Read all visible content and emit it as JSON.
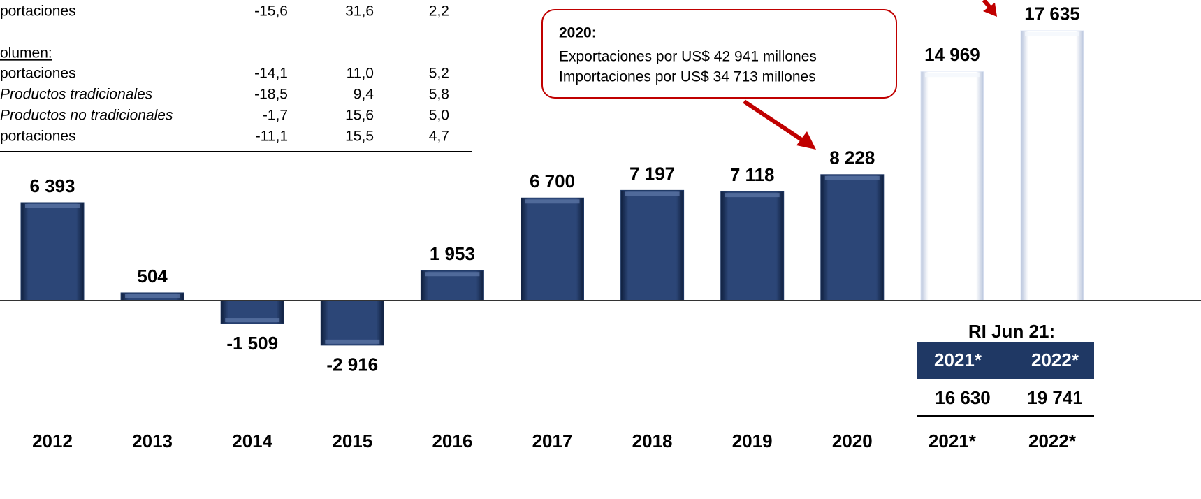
{
  "chart_data": {
    "type": "bar",
    "categories": [
      "2012",
      "2013",
      "2014",
      "2015",
      "2016",
      "2017",
      "2018",
      "2019",
      "2020",
      "2021*",
      "2022*"
    ],
    "values": [
      6393,
      504,
      -1509,
      -2916,
      1953,
      6700,
      7197,
      7118,
      8228,
      14969,
      17635
    ],
    "value_labels": [
      "6 393",
      "504",
      "-1 509",
      "-2 916",
      "1 953",
      "6 700",
      "7 197",
      "7 118",
      "8 228",
      "14 969",
      "17 635"
    ],
    "colors": [
      "#1f3864",
      "#1f3864",
      "#1f3864",
      "#1f3864",
      "#1f3864",
      "#1f3864",
      "#1f3864",
      "#1f3864",
      "#1f3864",
      "#e6ecf8",
      "#e6ecf8"
    ]
  },
  "table": {
    "rows": [
      [
        "portaciones",
        "-15,6",
        "31,6",
        "2,2"
      ],
      [
        "olumen:"
      ],
      [
        "portaciones",
        "-14,1",
        "11,0",
        "5,2"
      ],
      [
        "Productos tradicionales",
        "-18,5",
        "9,4",
        "5,8"
      ],
      [
        "Productos no tradicionales",
        "-1,7",
        "15,6",
        "5,0"
      ],
      [
        "portaciones",
        "-11,1",
        "15,5",
        "4,7"
      ]
    ]
  },
  "callout": {
    "title": "2020:",
    "lines": [
      "Exportaciones por US$ 42 941 millones",
      "Importaciones por US$ 34 713 millones"
    ]
  },
  "forecast_table": {
    "title": "RI Jun 21:",
    "header": [
      "2021*",
      "2022*"
    ],
    "values": [
      "16 630",
      "19 741"
    ]
  }
}
